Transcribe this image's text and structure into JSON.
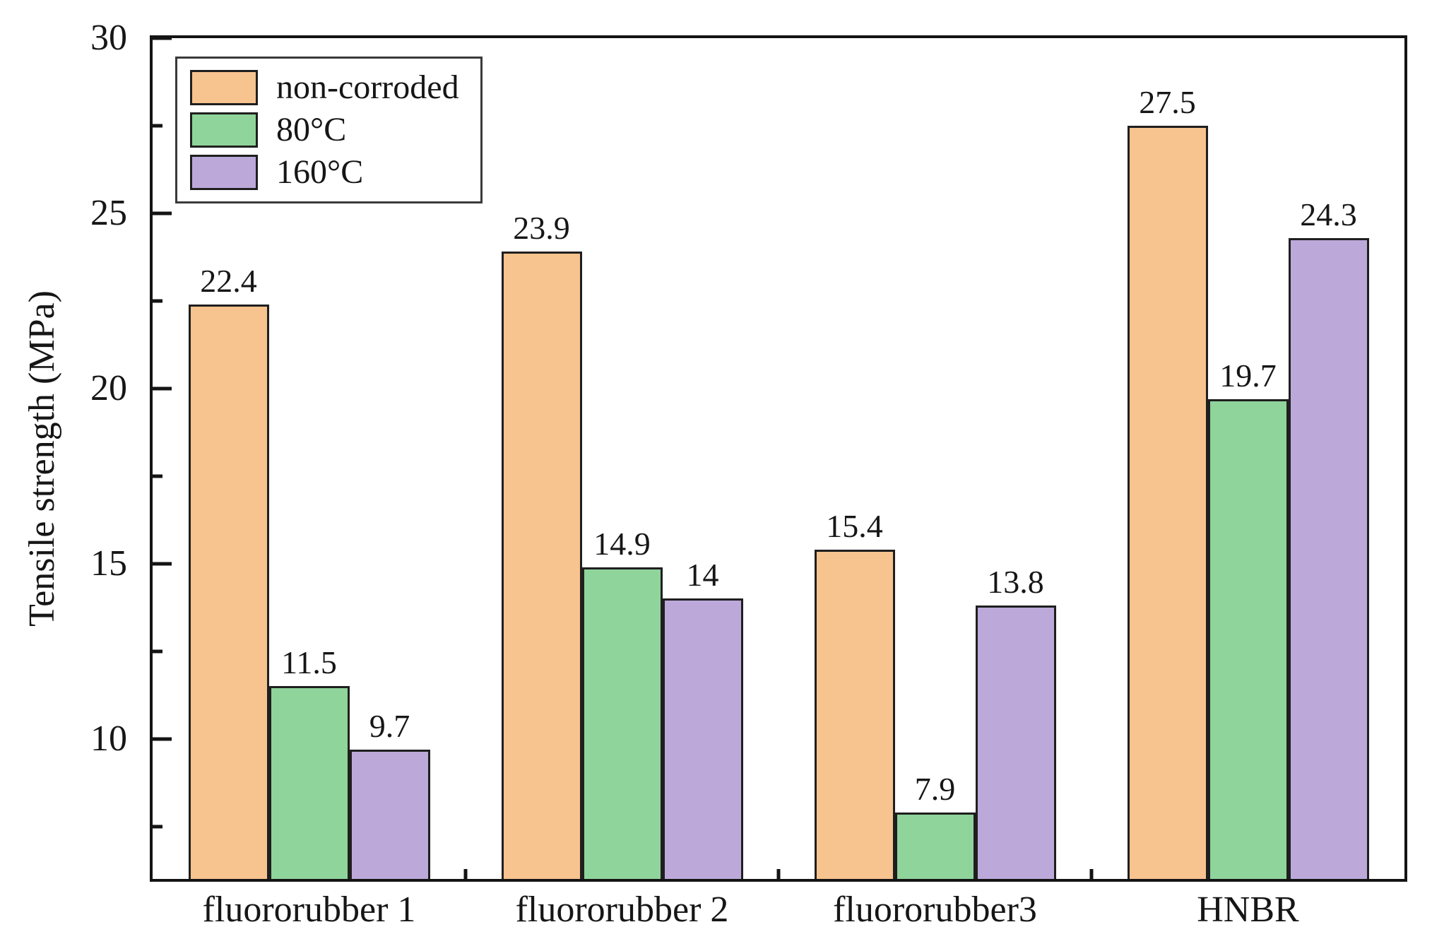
{
  "chart_data": {
    "type": "bar",
    "title": "",
    "ylabel": "Tensile strength (MPa)",
    "categories": [
      "fluororubber 1",
      "fluororubber 2",
      "fluororubber3",
      "HNBR"
    ],
    "series": [
      {
        "name": "non-corroded",
        "color": "#F7C38E",
        "values": [
          22.4,
          23.9,
          15.4,
          27.5
        ]
      },
      {
        "name": "80°C",
        "color": "#8FD49B",
        "values": [
          11.5,
          14.9,
          7.9,
          19.7
        ]
      },
      {
        "name": "160°C",
        "color": "#BCA9DA",
        "values": [
          9.7,
          14,
          13.8,
          24.3
        ]
      }
    ],
    "ylim": [
      6,
      30
    ],
    "y_major_ticks": [
      10,
      15,
      20,
      25,
      30
    ],
    "y_minor_ticks": [
      7.5,
      12.5,
      17.5,
      22.5,
      27.5
    ],
    "grid": false,
    "legend_position": "top-left",
    "bar_value_labels_shown": true,
    "axis_color": "#141414",
    "bar_edge_color": "#1f1f1f",
    "legend_border_color": "#3a3a3a"
  }
}
